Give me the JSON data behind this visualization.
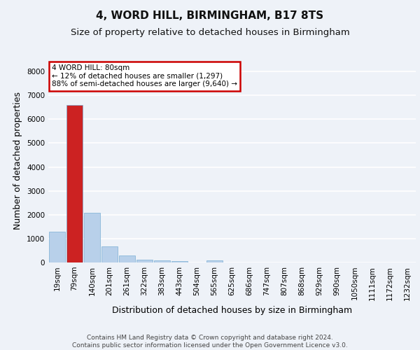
{
  "title": "4, WORD HILL, BIRMINGHAM, B17 8TS",
  "subtitle": "Size of property relative to detached houses in Birmingham",
  "xlabel": "Distribution of detached houses by size in Birmingham",
  "ylabel": "Number of detached properties",
  "footer_line1": "Contains HM Land Registry data © Crown copyright and database right 2024.",
  "footer_line2": "Contains public sector information licensed under the Open Government Licence v3.0.",
  "bin_labels": [
    "19sqm",
    "79sqm",
    "140sqm",
    "201sqm",
    "261sqm",
    "322sqm",
    "383sqm",
    "443sqm",
    "504sqm",
    "565sqm",
    "625sqm",
    "686sqm",
    "747sqm",
    "807sqm",
    "868sqm",
    "929sqm",
    "990sqm",
    "1050sqm",
    "1111sqm",
    "1172sqm",
    "1232sqm"
  ],
  "bar_values": [
    1300,
    6600,
    2080,
    680,
    290,
    130,
    75,
    55,
    0,
    85,
    0,
    0,
    0,
    0,
    0,
    0,
    0,
    0,
    0,
    0,
    0
  ],
  "highlight_bin": 1,
  "bar_color_normal": "#b8d0ea",
  "bar_color_highlight": "#cc2222",
  "bar_edge_color": "#7aafd4",
  "annotation_text": "4 WORD HILL: 80sqm\n← 12% of detached houses are smaller (1,297)\n88% of semi-detached houses are larger (9,640) →",
  "annotation_box_color": "#ffffff",
  "annotation_box_edge": "#cc0000",
  "ylim": [
    0,
    8500
  ],
  "yticks": [
    0,
    1000,
    2000,
    3000,
    4000,
    5000,
    6000,
    7000,
    8000
  ],
  "background_color": "#eef2f8",
  "axes_background": "#eef2f8",
  "grid_color": "#ffffff",
  "title_fontsize": 11,
  "subtitle_fontsize": 9.5,
  "axis_label_fontsize": 9,
  "tick_fontsize": 7.5,
  "annotation_fontsize": 7.5,
  "footer_fontsize": 6.5
}
